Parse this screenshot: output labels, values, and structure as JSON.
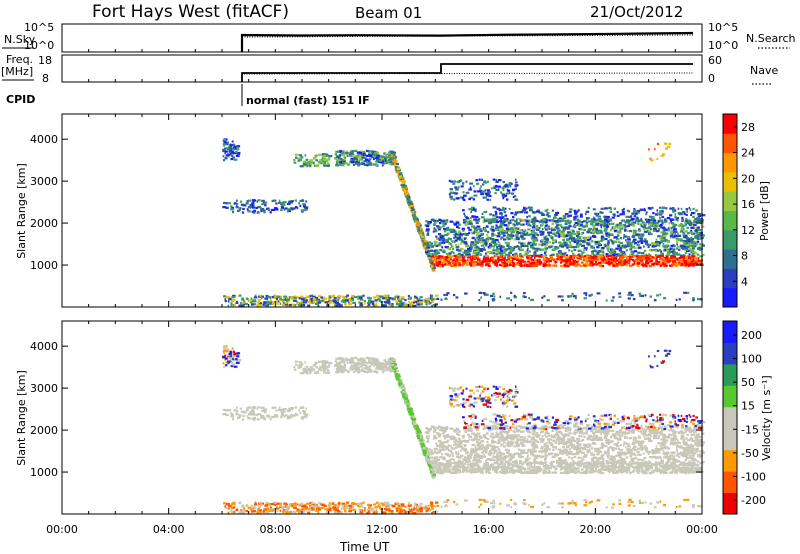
{
  "header": {
    "station": "Fort Hays West (fitACF)",
    "beam": "Beam 01",
    "date": "21/Oct/2012"
  },
  "strips": {
    "nsky_label": "N.Sky",
    "nsky_ticks": [
      "10^5",
      "10^0"
    ],
    "nsearch_label": "N.Search",
    "nsearch_ticks": [
      "10^5",
      "10^0"
    ],
    "freq_label": "Freq.",
    "freq_unit": "[MHz]",
    "freq_ticks": [
      "18",
      "8"
    ],
    "nave_label": "Nave",
    "nave_ticks": [
      "60",
      "0"
    ],
    "cpid_label": "CPID",
    "cpid_text": "normal (fast) 151 IF"
  },
  "colors": {
    "power": [
      "#1a1aff",
      "#2a3fbf",
      "#2e6f8f",
      "#3a9a6a",
      "#58b848",
      "#98c840",
      "#e8c000",
      "#ff9800",
      "#ff5500",
      "#ff0000"
    ],
    "velocity": [
      "#ee0000",
      "#ff5500",
      "#ff9900",
      "#c8c8b8",
      "#c8c8b8",
      "#58c830",
      "#2a9a5a",
      "#2a3fbf",
      "#1a1aff"
    ]
  },
  "chart_data": [
    {
      "type": "heatmap",
      "name": "power",
      "xlabel": "",
      "ylabel": "Slant Range [km]",
      "x_ticks": [
        "00:00",
        "04:00",
        "08:00",
        "12:00",
        "16:00",
        "20:00",
        "00:00"
      ],
      "y_ticks": [
        1000,
        2000,
        3000,
        4000
      ],
      "ylim": [
        0,
        4600
      ],
      "colorbar_label": "Power [dB]",
      "colorbar_ticks": [
        4,
        8,
        12,
        16,
        20,
        24,
        28
      ],
      "colorbar_range": [
        0,
        30
      ]
    },
    {
      "type": "heatmap",
      "name": "velocity",
      "xlabel": "Time UT",
      "ylabel": "Slant Range [km]",
      "x_ticks": [
        "00:00",
        "04:00",
        "08:00",
        "12:00",
        "16:00",
        "20:00",
        "00:00"
      ],
      "y_ticks": [
        1000,
        2000,
        3000,
        4000
      ],
      "ylim": [
        0,
        4600
      ],
      "colorbar_label": "Velocity [m s⁻¹]",
      "colorbar_ticks": [
        "200",
        "100",
        "50",
        "15",
        "-15",
        "-50",
        "-100",
        "-200"
      ],
      "colorbar_range": [
        -250,
        250
      ]
    }
  ]
}
